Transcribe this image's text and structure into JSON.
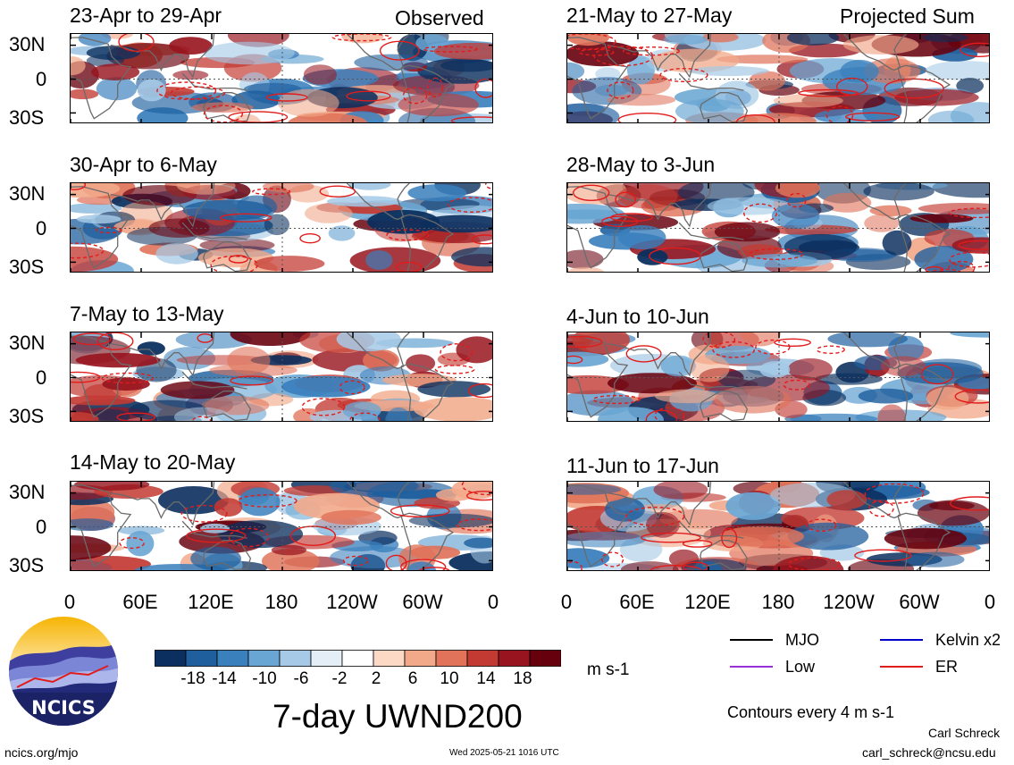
{
  "observed_label": "Observed",
  "projected_label": "Projected Sum",
  "panels": [
    {
      "title": "23-Apr to 29-Apr",
      "seed": 3
    },
    {
      "title": "30-Apr to 6-May",
      "seed": 7
    },
    {
      "title": "7-May to 13-May",
      "seed": 11
    },
    {
      "title": "14-May to 20-May",
      "seed": 13
    },
    {
      "title": "21-May to 27-May",
      "seed": 17
    },
    {
      "title": "28-May to 3-Jun",
      "seed": 19
    },
    {
      "title": "4-Jun to 10-Jun",
      "seed": 23
    },
    {
      "title": "11-Jun to 17-Jun",
      "seed": 29
    }
  ],
  "lat_labels": [
    "30N",
    "0",
    "30S"
  ],
  "lon_labels": [
    "0",
    "60E",
    "120E",
    "180",
    "120W",
    "60W",
    "0"
  ],
  "colorbar": {
    "labels": [
      "-18",
      "-14",
      "-10",
      "-6",
      "-2",
      "2",
      "6",
      "10",
      "14",
      "18"
    ],
    "colors": [
      "#0b2f5e",
      "#1f5f9e",
      "#3a80bd",
      "#6aa6d3",
      "#a5c9e6",
      "#e3eef7",
      "#ffffff",
      "#fbd9c5",
      "#f2a98a",
      "#e0735a",
      "#c33a33",
      "#98151f",
      "#67000d"
    ],
    "unit": "m s-1"
  },
  "legend": {
    "mjo": {
      "label": "MJO",
      "color": "#000000"
    },
    "kelvin": {
      "label": "Kelvin x2",
      "color": "#0000cc"
    },
    "low": {
      "label": "Low",
      "color": "#9b30d9"
    },
    "er": {
      "label": "ER",
      "color": "#e21b1b"
    },
    "contours_note": "Contours every 4 m s-1"
  },
  "main_title": "7-day UWND200",
  "logo_text": "NCICS",
  "footer": {
    "url": "ncics.org/mjo",
    "timestamp": "Wed 2025-05-21 1016 UTC",
    "author": "Carl Schreck",
    "email": "carl_schreck@ncsu.edu"
  }
}
